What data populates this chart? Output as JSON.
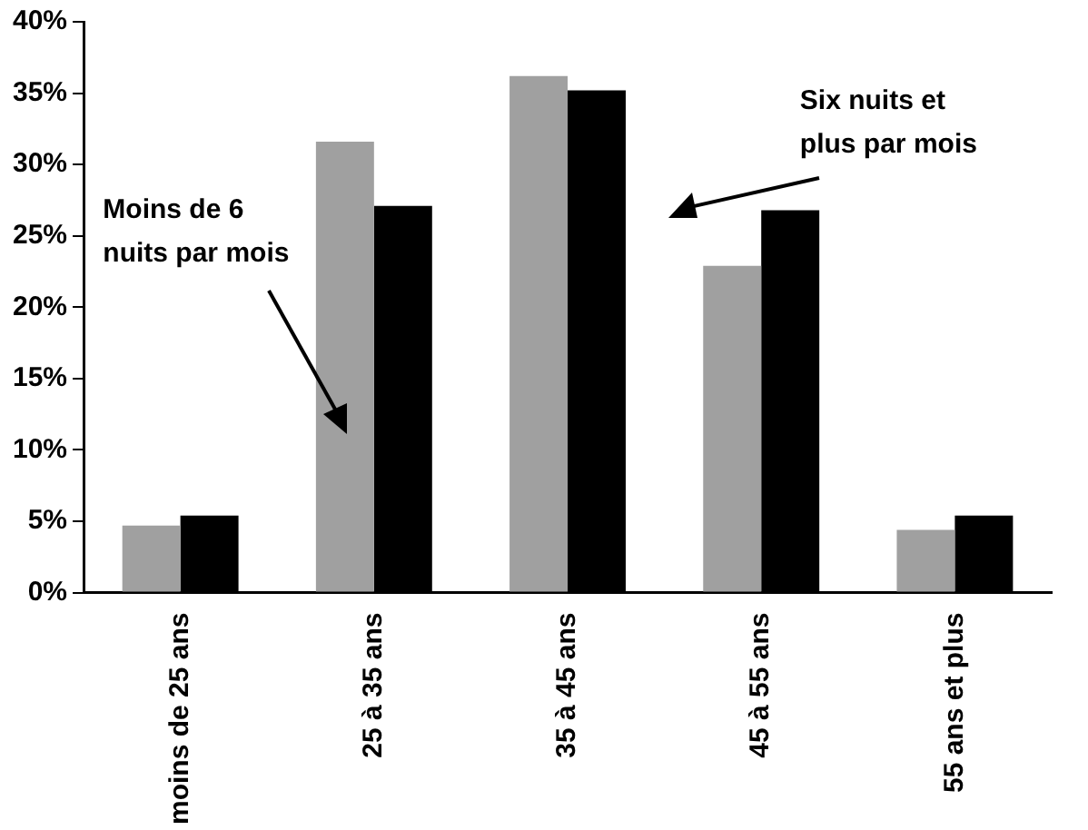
{
  "chart_data": {
    "type": "bar",
    "categories": [
      "moins de 25 ans",
      "25 à 35 ans",
      "35 à 45 ans",
      "45 à 55 ans",
      "55 ans et plus"
    ],
    "series": [
      {
        "name": "Moins de 6 nuits par mois",
        "color": "#a0a0a0",
        "values": [
          4.7,
          31.6,
          36.2,
          22.9,
          4.4
        ]
      },
      {
        "name": "Six nuits et plus par mois",
        "color": "#000000",
        "values": [
          5.4,
          27.1,
          35.2,
          26.8,
          5.4
        ]
      }
    ],
    "ylim": [
      0,
      40
    ],
    "yticks": [
      {
        "value": 0,
        "label": "0%"
      },
      {
        "value": 5,
        "label": "5%"
      },
      {
        "value": 10,
        "label": "10%"
      },
      {
        "value": 15,
        "label": "15%"
      },
      {
        "value": 20,
        "label": "20%"
      },
      {
        "value": 25,
        "label": "25%"
      },
      {
        "value": 30,
        "label": "30%"
      },
      {
        "value": 35,
        "label": "35%"
      },
      {
        "value": 40,
        "label": "40%"
      }
    ],
    "grid": false,
    "legend": false
  }
}
